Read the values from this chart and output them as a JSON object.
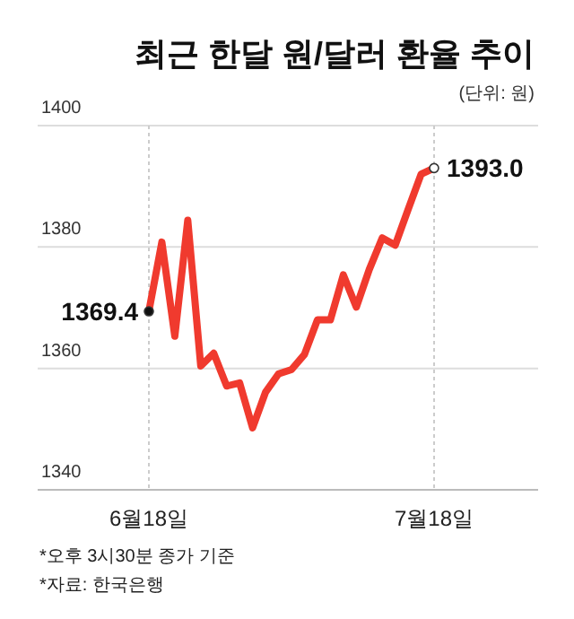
{
  "chart_data": {
    "type": "line",
    "title": "최근 한달 원/달러 환율 추이",
    "subtitle": "(단위: 원)",
    "categories": [
      "6월18일",
      null,
      null,
      null,
      null,
      null,
      null,
      null,
      null,
      null,
      null,
      null,
      null,
      null,
      null,
      null,
      null,
      null,
      null,
      null,
      null,
      null,
      "7월18일"
    ],
    "series": [
      {
        "color": "#f03a2e",
        "values": [
          1369.4,
          1380.8,
          1365.3,
          1384.4,
          1360.4,
          1362.5,
          1357.1,
          1357.6,
          1350.2,
          1356.1,
          1359.1,
          1359.8,
          1362.3,
          1368.0,
          1368.0,
          1375.4,
          1370.1,
          1376.3,
          1381.5,
          1380.3,
          1386.2,
          1392.0,
          1393.0
        ],
        "value_labels": [
          "1369.4",
          null,
          null,
          null,
          null,
          null,
          null,
          null,
          null,
          null,
          null,
          null,
          null,
          null,
          null,
          null,
          null,
          null,
          null,
          null,
          null,
          null,
          "1393.0"
        ]
      }
    ],
    "ylim": [
      1340,
      1400
    ],
    "yticks": [
      1340,
      1360,
      1380,
      1400
    ],
    "grid": true,
    "marker": "none",
    "line_style": "solid",
    "annotations": [
      "*오후 3시30분 종가 기준",
      "*자료: 한국은행"
    ]
  }
}
